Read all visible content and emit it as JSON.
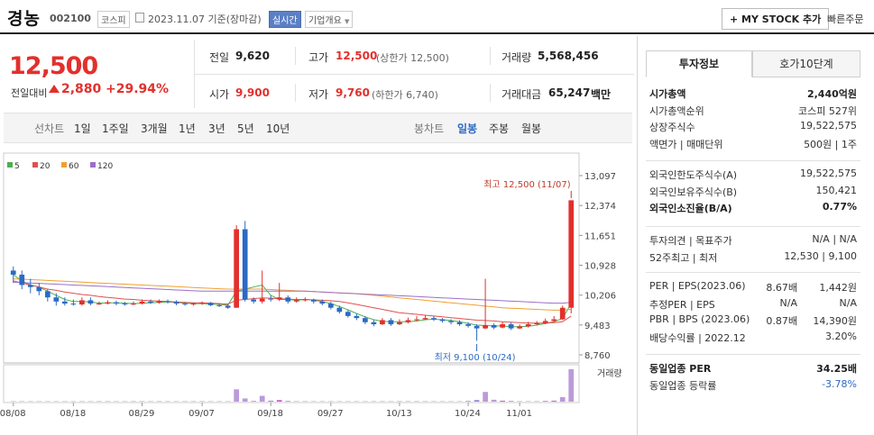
{
  "header": {
    "title": "경농",
    "code": "002100",
    "market": "코스피",
    "date": "2023.11.07 기준(장마감)",
    "realtime": "실시간",
    "company_overview": "기업개요",
    "mystock": "+ MY STOCK 추가",
    "quick_order": "빠른주문"
  },
  "price": {
    "current": "12,500",
    "change_label": "전일대비",
    "change": "2,880",
    "change_pct": "+29.94%"
  },
  "quote": {
    "prev_label": "전일",
    "prev": "9,620",
    "high_label": "고가",
    "high": "12,500",
    "high_sub": "(상한가 12,500)",
    "volume_label": "거래량",
    "volume": "5,568,456",
    "open_label": "시가",
    "open": "9,900",
    "low_label": "저가",
    "low": "9,760",
    "low_sub": "(하한가 6,740)",
    "amount_label": "거래대금",
    "amount": "65,247",
    "amount_unit": "백만"
  },
  "periods": {
    "line_label": "선차트",
    "items": [
      "1일",
      "1주일",
      "3개월",
      "1년",
      "3년",
      "5년",
      "10년"
    ],
    "candle_label": "봉차트",
    "candle_items": [
      "일봉",
      "주봉",
      "월봉"
    ]
  },
  "legend": [
    {
      "label": "5",
      "color": "#4caf50"
    },
    {
      "label": "20",
      "color": "#e05050"
    },
    {
      "label": "60",
      "color": "#f0a030"
    },
    {
      "label": "120",
      "color": "#9c6fc8"
    }
  ],
  "chart_data": {
    "type": "candlestick",
    "y_ticks": [
      "13,097",
      "12,374",
      "11,651",
      "10,928",
      "10,206",
      "9,483",
      "8,760"
    ],
    "x_ticks": [
      "08/08",
      "08/18",
      "08/29",
      "09/07",
      "09/18",
      "09/27",
      "10/13",
      "10/24",
      "11/01"
    ],
    "high_annotation": "최고 12,500 (11/07)",
    "low_annotation": "최저 9,100 (10/24)",
    "volume_label": "거래량",
    "ylim": [
      8760,
      13097
    ],
    "candles": [
      [
        10800,
        10700,
        10900,
        10500
      ],
      [
        10700,
        10450,
        10800,
        10350
      ],
      [
        10450,
        10400,
        10600,
        10250
      ],
      [
        10400,
        10300,
        10500,
        10200
      ],
      [
        10300,
        10150,
        10350,
        10050
      ],
      [
        10150,
        10050,
        10250,
        9950
      ],
      [
        10050,
        10000,
        10150,
        9950
      ],
      [
        10000,
        9980,
        10100,
        9950
      ],
      [
        9980,
        10080,
        10150,
        9950
      ],
      [
        10080,
        10000,
        10150,
        9960
      ],
      [
        10000,
        10000,
        10050,
        9970
      ],
      [
        10000,
        10030,
        10080,
        9980
      ],
      [
        10030,
        10000,
        10070,
        9960
      ],
      [
        10000,
        9980,
        10040,
        9950
      ],
      [
        9980,
        10000,
        10050,
        9960
      ],
      [
        10000,
        10050,
        10100,
        9980
      ],
      [
        10050,
        10020,
        10100,
        9990
      ],
      [
        10020,
        10060,
        10100,
        10000
      ],
      [
        10060,
        10040,
        10100,
        10000
      ],
      [
        10040,
        10000,
        10080,
        9960
      ],
      [
        10000,
        9980,
        10040,
        9950
      ],
      [
        9980,
        10000,
        10030,
        9950
      ],
      [
        10000,
        10020,
        10050,
        9970
      ],
      [
        10020,
        9960,
        10040,
        9940
      ],
      [
        9960,
        9950,
        10000,
        9920
      ],
      [
        9950,
        9900,
        9980,
        9870
      ],
      [
        9900,
        11800,
        11900,
        9900
      ],
      [
        11800,
        10100,
        12000,
        10050
      ],
      [
        10100,
        10050,
        10150,
        10000
      ],
      [
        10050,
        10120,
        10800,
        10000
      ],
      [
        10120,
        10100,
        10200,
        10050
      ],
      [
        10100,
        10150,
        10500,
        10060
      ],
      [
        10150,
        10050,
        10200,
        10000
      ],
      [
        10050,
        10080,
        10150,
        10020
      ],
      [
        10080,
        10100,
        10150,
        10050
      ],
      [
        10100,
        10050,
        10120,
        10000
      ],
      [
        10050,
        10000,
        10100,
        9960
      ],
      [
        10000,
        9900,
        10050,
        9860
      ],
      [
        9900,
        9800,
        9950,
        9760
      ],
      [
        9800,
        9700,
        9850,
        9660
      ],
      [
        9700,
        9650,
        9750,
        9600
      ],
      [
        9650,
        9550,
        9700,
        9500
      ],
      [
        9550,
        9500,
        9600,
        9450
      ],
      [
        9500,
        9600,
        9650,
        9480
      ],
      [
        9600,
        9500,
        9650,
        9460
      ],
      [
        9500,
        9550,
        9620,
        9480
      ],
      [
        9550,
        9600,
        9660,
        9520
      ],
      [
        9600,
        9620,
        9700,
        9570
      ],
      [
        9620,
        9650,
        9720,
        9600
      ],
      [
        9650,
        9620,
        9700,
        9580
      ],
      [
        9620,
        9580,
        9650,
        9540
      ],
      [
        9580,
        9550,
        9620,
        9500
      ],
      [
        9550,
        9500,
        9600,
        9460
      ],
      [
        9500,
        9460,
        9550,
        9420
      ],
      [
        9460,
        9400,
        9500,
        9100
      ],
      [
        9400,
        9480,
        10600,
        9380
      ],
      [
        9480,
        9420,
        9520,
        9380
      ],
      [
        9420,
        9500,
        9560,
        9400
      ],
      [
        9500,
        9400,
        9540,
        9360
      ],
      [
        9400,
        9450,
        9500,
        9380
      ],
      [
        9450,
        9500,
        9560,
        9420
      ],
      [
        9500,
        9530,
        9580,
        9470
      ],
      [
        9530,
        9580,
        9640,
        9500
      ],
      [
        9580,
        9620,
        9700,
        9550
      ],
      [
        9620,
        9900,
        9950,
        9600
      ],
      [
        9900,
        12500,
        12500,
        9760
      ]
    ],
    "volume": [
      0.01,
      0.01,
      0.01,
      0.01,
      0.01,
      0.01,
      0.01,
      0.01,
      0.01,
      0.01,
      0.01,
      0.01,
      0.01,
      0.01,
      0.01,
      0.01,
      0.01,
      0.01,
      0.01,
      0.01,
      0.01,
      0.01,
      0.01,
      0.01,
      0.01,
      0.01,
      0.38,
      0.1,
      0.02,
      0.18,
      0.03,
      0.05,
      0.02,
      0.01,
      0.01,
      0.01,
      0.01,
      0.01,
      0.01,
      0.01,
      0.01,
      0.01,
      0.01,
      0.01,
      0.01,
      0.01,
      0.01,
      0.01,
      0.01,
      0.01,
      0.01,
      0.01,
      0.01,
      0.02,
      0.05,
      0.3,
      0.06,
      0.03,
      0.02,
      0.01,
      0.01,
      0.01,
      0.02,
      0.03,
      0.14,
      1.0
    ],
    "ma": [
      {
        "name": "5",
        "color": "#4caf50",
        "values": [
          10700,
          10550,
          10450,
          10400,
          10300,
          10200,
          10100,
          10050,
          10050,
          10040,
          10010,
          10020,
          10020,
          10010,
          10000,
          10010,
          10020,
          10030,
          10040,
          10030,
          10010,
          10000,
          10000,
          9990,
          9980,
          9960,
          10300,
          10350,
          10400,
          10450,
          10200,
          10100,
          10100,
          10080,
          10100,
          10080,
          10050,
          10000,
          9930,
          9850,
          9760,
          9680,
          9610,
          9570,
          9560,
          9560,
          9560,
          9580,
          9610,
          9620,
          9610,
          9590,
          9560,
          9520,
          9480,
          9470,
          9460,
          9460,
          9440,
          9440,
          9450,
          9480,
          9520,
          9560,
          9640,
          10000
        ]
      },
      {
        "name": "20",
        "color": "#e05050",
        "values": [
          10550,
          10500,
          10450,
          10400,
          10350,
          10320,
          10280,
          10250,
          10220,
          10200,
          10170,
          10150,
          10130,
          10110,
          10100,
          10080,
          10070,
          10060,
          10050,
          10040,
          10030,
          10020,
          10020,
          10010,
          10000,
          9990,
          10080,
          10100,
          10120,
          10140,
          10130,
          10120,
          10110,
          10100,
          10100,
          10090,
          10080,
          10070,
          10050,
          10020,
          9980,
          9940,
          9900,
          9860,
          9820,
          9780,
          9760,
          9740,
          9720,
          9700,
          9680,
          9660,
          9640,
          9620,
          9600,
          9590,
          9580,
          9560,
          9550,
          9540,
          9530,
          9530,
          9530,
          9540,
          9560,
          9700
        ]
      },
      {
        "name": "60",
        "color": "#f0a030",
        "values": [
          10600,
          10590,
          10580,
          10570,
          10560,
          10550,
          10540,
          10530,
          10520,
          10510,
          10500,
          10490,
          10480,
          10470,
          10460,
          10450,
          10440,
          10430,
          10420,
          10410,
          10400,
          10390,
          10380,
          10370,
          10360,
          10350,
          10350,
          10350,
          10350,
          10350,
          10340,
          10330,
          10320,
          10310,
          10300,
          10290,
          10280,
          10270,
          10260,
          10250,
          10240,
          10220,
          10200,
          10180,
          10160,
          10140,
          10120,
          10100,
          10080,
          10060,
          10040,
          10020,
          10000,
          9980,
          9960,
          9940,
          9920,
          9900,
          9890,
          9880,
          9870,
          9860,
          9850,
          9840,
          9840,
          9860
        ]
      },
      {
        "name": "120",
        "color": "#9c6fc8",
        "values": [
          10520,
          10510,
          10500,
          10490,
          10480,
          10470,
          10460,
          10450,
          10440,
          10430,
          10420,
          10410,
          10400,
          10390,
          10380,
          10370,
          10360,
          10350,
          10340,
          10330,
          10320,
          10310,
          10300,
          10300,
          10300,
          10300,
          10300,
          10300,
          10300,
          10300,
          10300,
          10300,
          10300,
          10300,
          10300,
          10290,
          10280,
          10270,
          10260,
          10250,
          10240,
          10230,
          10220,
          10210,
          10200,
          10190,
          10180,
          10170,
          10160,
          10150,
          10140,
          10130,
          10120,
          10110,
          10100,
          10090,
          10080,
          10070,
          10060,
          10050,
          10040,
          10030,
          10020,
          10010,
          10010,
          10030
        ]
      }
    ]
  },
  "right_panel": {
    "tabs": [
      "투자정보",
      "호가10단계"
    ],
    "group1": [
      {
        "label": "시가총액",
        "value": "2,440억원",
        "bold": true
      },
      {
        "label": "시가총액순위",
        "value": "코스피 527위"
      },
      {
        "label": "상장주식수",
        "value": "19,522,575"
      },
      {
        "label": "액면가 | 매매단위",
        "value": "500원 | 1주"
      }
    ],
    "group2": [
      {
        "label": "외국인한도주식수(A)",
        "value": "19,522,575"
      },
      {
        "label": "외국인보유주식수(B)",
        "value": "150,421"
      },
      {
        "label": "외국인소진율(B/A)",
        "value": "0.77%",
        "bold": true
      }
    ],
    "group3": [
      {
        "label": "투자의견 | 목표주가",
        "value": "N/A | N/A"
      },
      {
        "label": "52주최고 | 최저",
        "value": "12,530 | 9,100"
      }
    ],
    "group4": [
      {
        "label": "PER | EPS(2023.06)",
        "value1": "8.67배",
        "value2": "1,442원"
      },
      {
        "label": "추정PER | EPS",
        "value1": "N/A",
        "value2": "N/A"
      },
      {
        "label": "PBR | BPS (2023.06)",
        "value1": "0.87배",
        "value2": "14,390원"
      },
      {
        "label": "배당수익률 | 2022.12",
        "value1": "",
        "value2": "3.20%"
      }
    ],
    "group5": [
      {
        "label": "동일업종 PER",
        "value": "34.25배",
        "bold": true
      },
      {
        "label": "동일업종 등락률",
        "value": "-3.78%",
        "blue": true
      }
    ]
  }
}
